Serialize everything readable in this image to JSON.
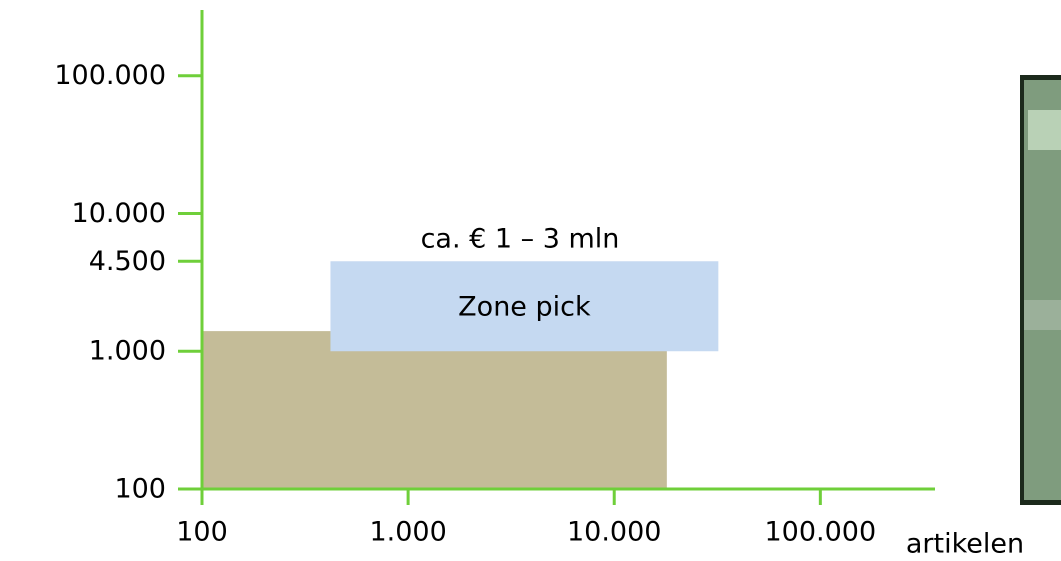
{
  "chart_data": {
    "type": "region",
    "xlabel": "artikelen",
    "annotation": "ca. € 1 – 3 mln",
    "log_x": true,
    "log_y": true,
    "xlim": [
      100,
      360000
    ],
    "ylim": [
      100,
      300000
    ],
    "xticks": [
      100,
      {
        "value": 1000,
        "label": "1.000"
      },
      {
        "value": 10000,
        "label": "10.000"
      },
      {
        "value": 100000,
        "label": "100.000"
      }
    ],
    "yticks": [
      100,
      {
        "value": 1000,
        "label": "1.000"
      },
      {
        "value": 4500,
        "label": "4.500"
      },
      {
        "value": 10000,
        "label": "10.000"
      },
      {
        "value": 100000,
        "label": "100.000"
      }
    ],
    "axis_color": "#6fcf3a",
    "regions": [
      {
        "x": [
          100,
          18000
        ],
        "y": [
          100,
          1400
        ],
        "color": "#c4bc98"
      },
      {
        "name": "Zone pick",
        "x": [
          420,
          32000
        ],
        "y": [
          1000,
          4500
        ],
        "color": "#c5d9f1"
      }
    ]
  }
}
